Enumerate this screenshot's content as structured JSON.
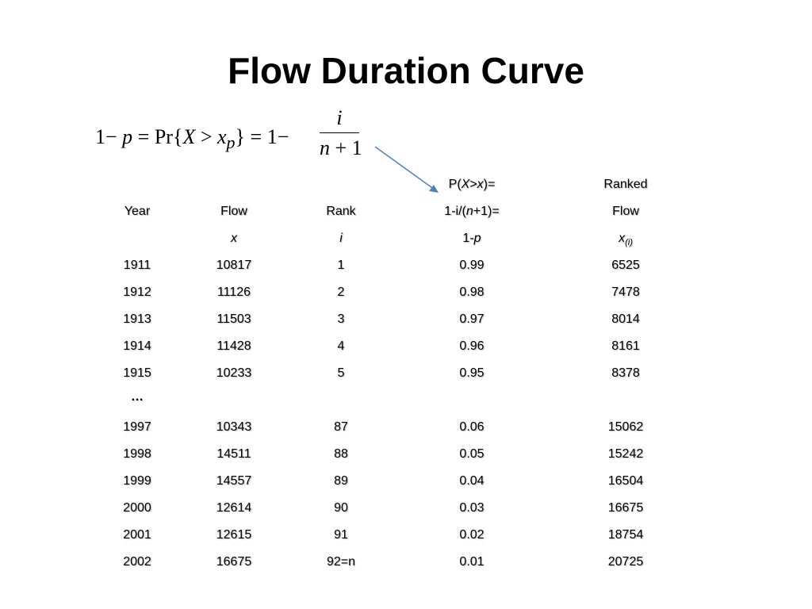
{
  "title": "Flow Duration Curve",
  "formula": {
    "lhs_a": "1− ",
    "lhs_p": "p",
    "lhs_b": " = Pr{",
    "lhs_X": "X",
    "lhs_gt": " > ",
    "lhs_x": "x",
    "lhs_sub": "p",
    "lhs_c": "} = 1−",
    "numerator": "i",
    "den_n": "n",
    "den_rest": " + 1"
  },
  "arrow_color": "#4f81bd",
  "header": {
    "row1": {
      "col4_a": "P(",
      "col4_b": "X",
      "col4_c": ">",
      "col4_d": "x",
      "col4_e": ")=",
      "col5": "Ranked"
    },
    "row2": {
      "col1": "Year",
      "col2": "Flow",
      "col3": "Rank",
      "col4_a": "1-i/(",
      "col4_b": "n",
      "col4_c": "+1)=",
      "col5": "Flow"
    },
    "row3": {
      "col2": "x",
      "col3": "i",
      "col4_a": "1-",
      "col4_b": "p",
      "col5": "x",
      "col5_sub": "(i)"
    }
  },
  "rows": [
    [
      "1911",
      "10817",
      "1",
      "0.99",
      "6525"
    ],
    [
      "1912",
      "11126",
      "2",
      "0.98",
      "7478"
    ],
    [
      "1913",
      "11503",
      "3",
      "0.97",
      "8014"
    ],
    [
      "1914",
      "11428",
      "4",
      "0.96",
      "8161"
    ],
    [
      "1915",
      "10233",
      "5",
      "0.95",
      "8378"
    ],
    [
      "…",
      "",
      "",
      "",
      ""
    ],
    [
      "1997",
      "10343",
      "87",
      "0.06",
      "15062"
    ],
    [
      "1998",
      "14511",
      "88",
      "0.05",
      "15242"
    ],
    [
      "1999",
      "14557",
      "89",
      "0.04",
      "16504"
    ],
    [
      "2000",
      "12614",
      "90",
      "0.03",
      "16675"
    ],
    [
      "2001",
      "12615",
      "91",
      "0.02",
      "18754"
    ],
    [
      "2002",
      "16675",
      "92=n",
      "0.01",
      "20725"
    ]
  ]
}
